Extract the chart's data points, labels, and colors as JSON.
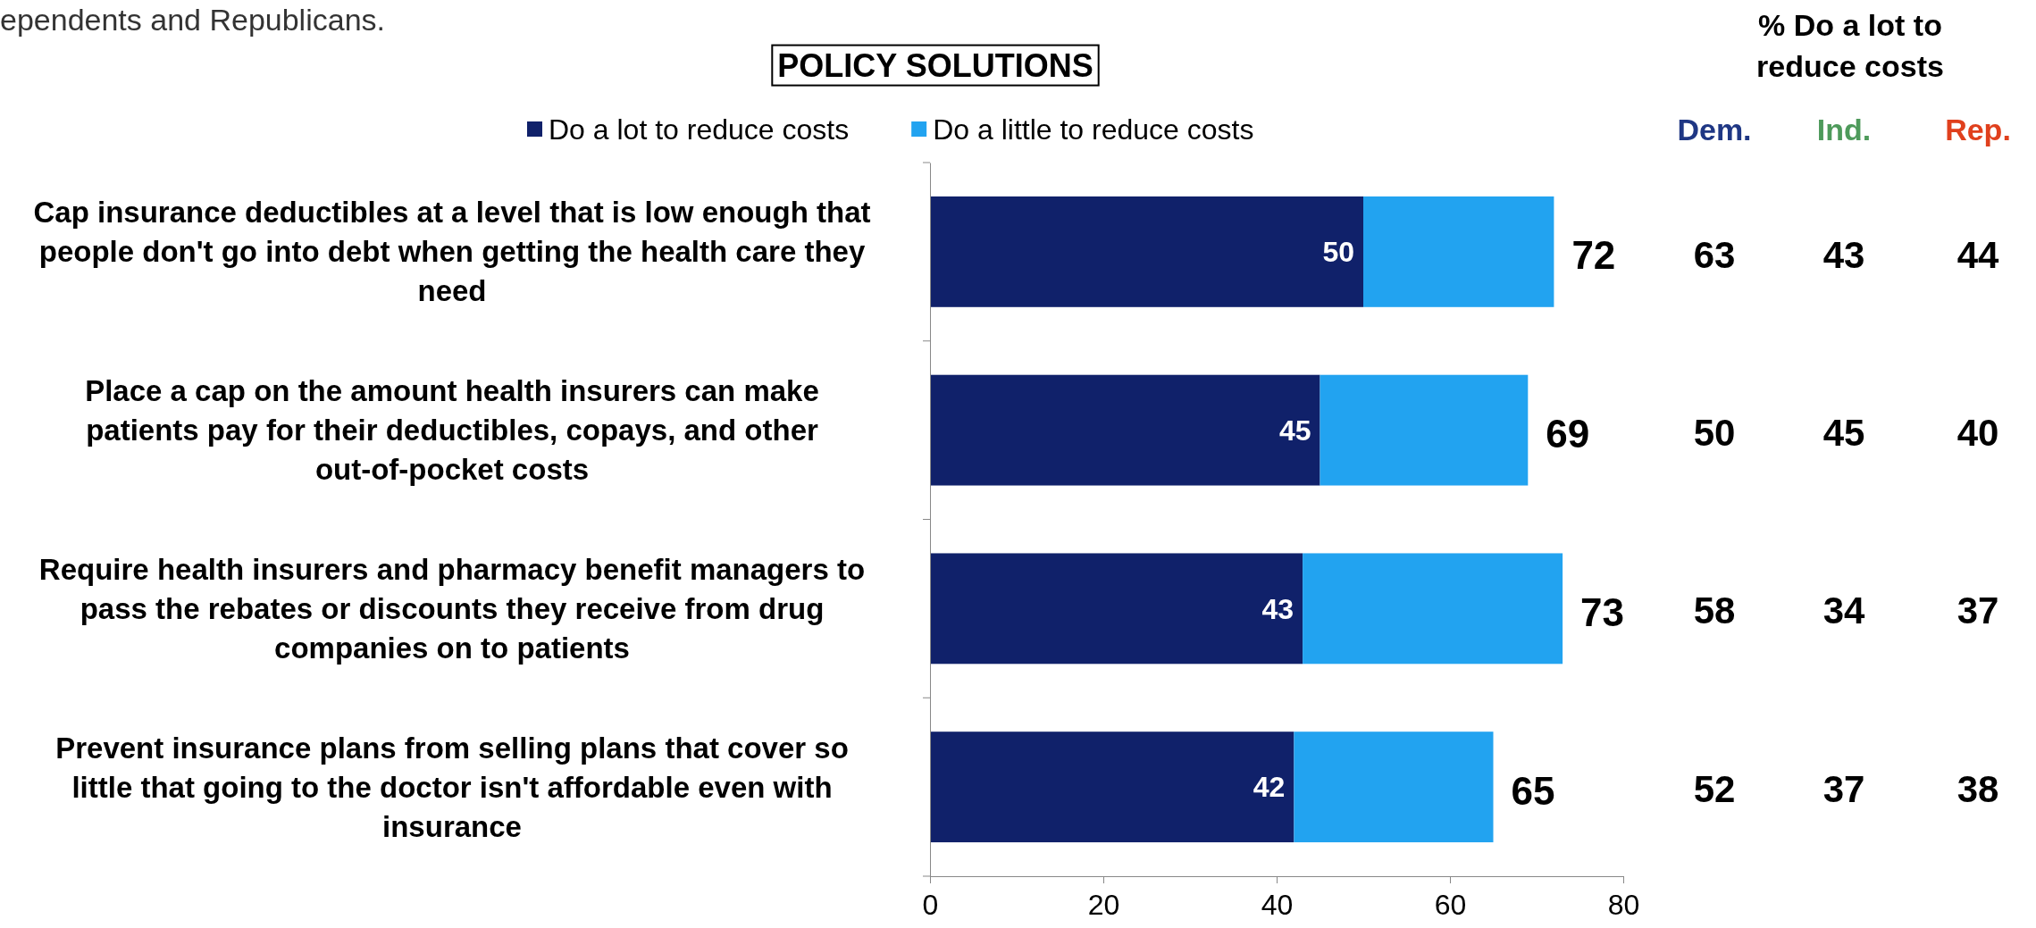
{
  "chart_data": [
    {
      "type": "bar",
      "orientation": "horizontal",
      "stacked": true,
      "title": "POLICY SOLUTIONS",
      "categories": [
        "Cap insurance deductibles at a level that is low enough that people don't go into debt when getting the health care they need",
        "Place a cap on the amount health insurers can make patients pay for their deductibles, copays, and other out-of-pocket costs",
        "Require health insurers and pharmacy benefit managers to pass the rebates or discounts they receive from drug companies on to patients",
        "Prevent insurance plans from selling plans that cover so little that going to the doctor isn't affordable even with insurance"
      ],
      "series": [
        {
          "name": "Do a lot to reduce costs",
          "color": "#10216a",
          "values": [
            50,
            45,
            43,
            42
          ],
          "value_labels": [
            "50",
            "45",
            "43",
            "42"
          ]
        },
        {
          "name": "Do a little to reduce costs",
          "color": "#22a3f0",
          "values": [
            22,
            24,
            30,
            23
          ]
        }
      ],
      "totals": [
        "72",
        "69",
        "73",
        "65"
      ],
      "xlim": [
        0,
        80
      ],
      "xticks": [
        0,
        20,
        40,
        60,
        80
      ],
      "grid": false,
      "legend": "top",
      "annotations": [
        "ependents and Republicans."
      ]
    },
    {
      "type": "heatmap",
      "title": "% Do a lot to reduce costs",
      "categories": [
        "Dem.",
        "Ind.",
        "Rep."
      ],
      "colors": [
        "#1f3784",
        "#4e9a5b",
        "#e0401d"
      ],
      "y_categories": [
        null,
        null,
        null,
        null
      ],
      "data_labels": true,
      "cells": [
        [
          63,
          43,
          44
        ],
        [
          50,
          45,
          40
        ],
        [
          58,
          34,
          37
        ],
        [
          52,
          37,
          38
        ]
      ]
    }
  ]
}
